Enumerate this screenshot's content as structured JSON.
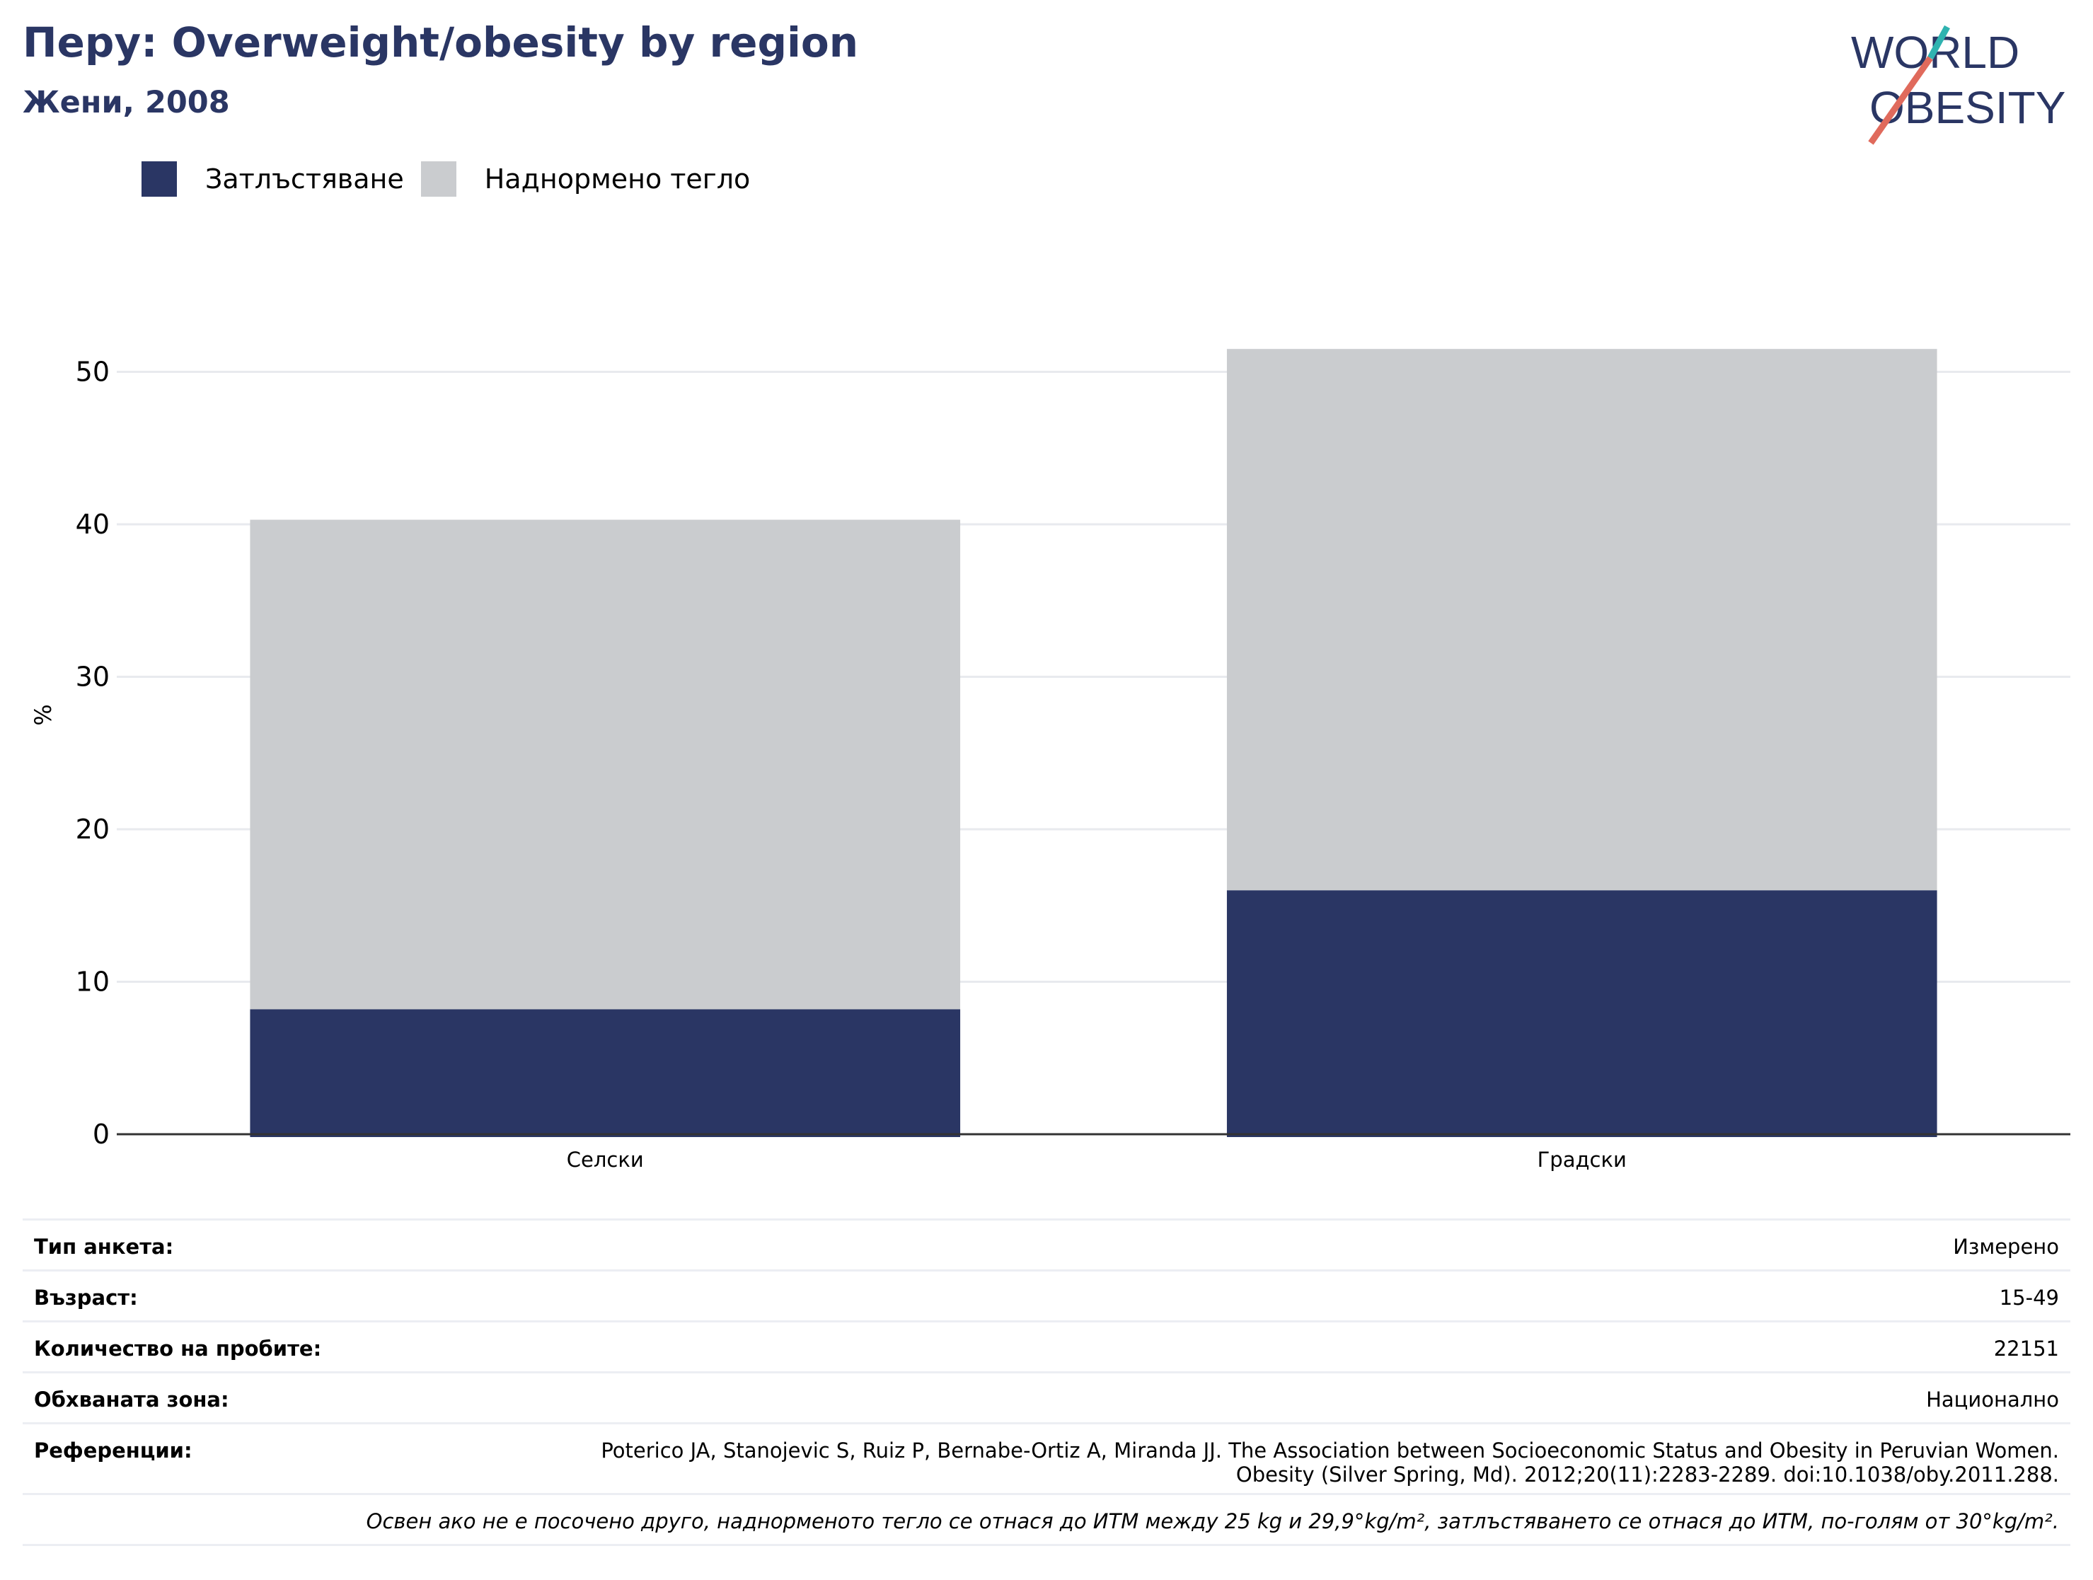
{
  "header": {
    "title": "Перу: Overweight/obesity by region",
    "subtitle": "Жени, 2008"
  },
  "logo": {
    "line1": "WORLD",
    "line2": "OBESITY"
  },
  "colors": {
    "obesity": "#2a3664",
    "overweight": "#cacccf",
    "grid": "#e8eaee",
    "axis": "#333333",
    "title": "#2a3664",
    "logo_teal": "#2fb3b0",
    "logo_coral": "#e06a5c"
  },
  "chart_data": {
    "type": "bar",
    "stacked": true,
    "categories": [
      "Селски",
      "Градски"
    ],
    "series": [
      {
        "name": "Затлъстяване",
        "values": [
          8.2,
          16.0
        ]
      },
      {
        "name": "Наднормено тегло",
        "values": [
          32.1,
          35.5
        ]
      }
    ],
    "ylabel": "%",
    "ylim": [
      0,
      55
    ],
    "yticks": [
      0,
      10,
      20,
      30,
      40,
      50
    ],
    "grid": true,
    "legend_position": "top-left"
  },
  "meta": {
    "survey_type_label": "Тип анкета:",
    "survey_type_value": "Измерено",
    "age_label": "Възраст:",
    "age_value": "15-49",
    "sample_label": "Количество на пробите:",
    "sample_value": "22151",
    "area_label": "Обхваната зона:",
    "area_value": "Национално",
    "ref_label": "Референции:",
    "ref_line1": "Poterico JA, Stanojevic S, Ruiz P, Bernabe-Ortiz A, Miranda JJ. The Association between Socioeconomic Status and Obesity in Peruvian Women.",
    "ref_line2": "Obesity (Silver Spring, Md). 2012;20(11):2283-2289. doi:10.1038/oby.2011.288.",
    "note": "Освен ако не е посочено друго, наднорменото тегло се отнася до ИТМ между 25 kg и 29,9°kg/m², затлъстяването се отнася до ИТМ, по-голям от 30°kg/m²."
  }
}
